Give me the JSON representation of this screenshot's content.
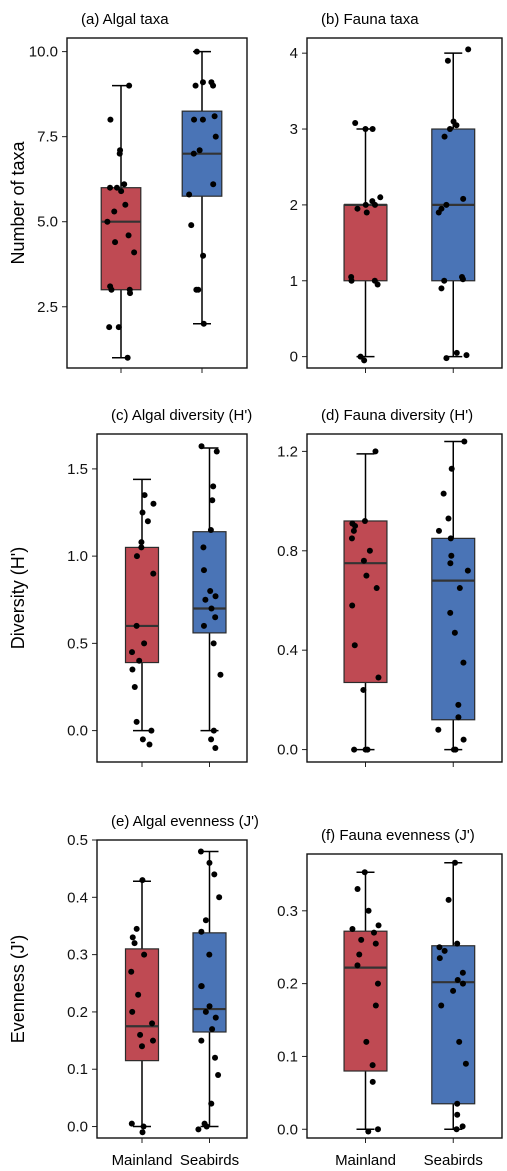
{
  "chart_data": [
    {
      "type": "box",
      "title": "(a) Algal taxa",
      "ylabel": "Number of taxa",
      "yticks": [
        "2.5",
        "5.0",
        "7.5",
        "10.0"
      ],
      "ylim": [
        0.7,
        10.4
      ],
      "categories": [],
      "colors": [
        "#bf4a53",
        "#4a74b6"
      ],
      "boxes": [
        {
          "group": "Mainland",
          "min": 1,
          "q1": 3,
          "median": 5,
          "q3": 6,
          "max": 9,
          "points": [
            1,
            1.9,
            1.9,
            2.9,
            3,
            3,
            3.1,
            4.1,
            4.4,
            4.6,
            5,
            5.3,
            5.5,
            5.9,
            6,
            6,
            6.1,
            7,
            7.1,
            8,
            9
          ]
        },
        {
          "group": "Seabirds",
          "min": 2,
          "q1": 5.75,
          "median": 7,
          "q3": 8.25,
          "max": 10,
          "points": [
            2,
            3,
            3,
            4,
            4.9,
            5.8,
            6.1,
            7,
            7.1,
            7.5,
            8,
            8,
            8.1,
            9,
            9,
            9.1,
            9.1,
            10
          ]
        }
      ]
    },
    {
      "type": "box",
      "title": "(b) Fauna taxa",
      "ylabel": "",
      "yticks": [
        "0",
        "1",
        "2",
        "3",
        "4"
      ],
      "ylim": [
        -0.15,
        4.2
      ],
      "categories": [],
      "colors": [
        "#bf4a53",
        "#4a74b6"
      ],
      "boxes": [
        {
          "group": "Mainland",
          "min": 0,
          "q1": 1,
          "median": 2,
          "q3": 2,
          "max": 3,
          "points": [
            -0.05,
            0,
            0.95,
            1,
            1,
            1.05,
            1.9,
            1.95,
            2,
            2,
            2.05,
            2.1,
            3,
            3,
            3.08
          ]
        },
        {
          "group": "Seabirds",
          "min": 0,
          "q1": 1,
          "median": 2,
          "q3": 3,
          "max": 4,
          "points": [
            -0.02,
            0.02,
            0.05,
            0.9,
            1,
            1.02,
            1.05,
            1.9,
            1.95,
            2,
            2.08,
            2.9,
            3,
            3.05,
            3.1,
            3.9,
            4.05
          ]
        }
      ]
    },
    {
      "type": "box",
      "title": "(c) Algal diversity (H')",
      "ylabel": "Diversity (H')",
      "yticks": [
        "0.0",
        "0.5",
        "1.0",
        "1.5"
      ],
      "ylim": [
        -0.18,
        1.7
      ],
      "categories": [],
      "colors": [
        "#bf4a53",
        "#4a74b6"
      ],
      "boxes": [
        {
          "group": "Mainland",
          "min": 0,
          "q1": 0.39,
          "median": 0.6,
          "q3": 1.05,
          "max": 1.44,
          "points": [
            -0.08,
            -0.05,
            0,
            0.05,
            0.25,
            0.35,
            0.4,
            0.45,
            0.5,
            0.6,
            0.9,
            1.0,
            1.05,
            1.08,
            1.2,
            1.25,
            1.3,
            1.35
          ]
        },
        {
          "group": "Seabirds",
          "min": 0,
          "q1": 0.56,
          "median": 0.7,
          "q3": 1.14,
          "max": 1.62,
          "points": [
            -0.1,
            -0.05,
            0,
            0.32,
            0.5,
            0.6,
            0.65,
            0.7,
            0.75,
            0.77,
            0.8,
            0.92,
            1.05,
            1.15,
            1.32,
            1.4,
            1.6,
            1.63
          ]
        }
      ]
    },
    {
      "type": "box",
      "title": "(d) Fauna diversity (H')",
      "ylabel": "",
      "yticks": [
        "0.0",
        "0.4",
        "0.8",
        "1.2"
      ],
      "ylim": [
        -0.05,
        1.27
      ],
      "categories": [],
      "colors": [
        "#bf4a53",
        "#4a74b6"
      ],
      "boxes": [
        {
          "group": "Mainland",
          "min": 0,
          "q1": 0.27,
          "median": 0.75,
          "q3": 0.92,
          "max": 1.19,
          "points": [
            0,
            0,
            0,
            0.24,
            0.29,
            0.42,
            0.58,
            0.65,
            0.7,
            0.76,
            0.8,
            0.85,
            0.88,
            0.9,
            0.91,
            0.92,
            1.2
          ]
        },
        {
          "group": "Seabirds",
          "min": 0,
          "q1": 0.12,
          "median": 0.68,
          "q3": 0.85,
          "max": 1.24,
          "points": [
            0,
            0,
            0.04,
            0.08,
            0.13,
            0.18,
            0.35,
            0.47,
            0.55,
            0.65,
            0.72,
            0.75,
            0.78,
            0.85,
            0.88,
            0.93,
            1.03,
            1.13,
            1.24
          ]
        }
      ]
    },
    {
      "type": "box",
      "title": "(e) Algal evenness (J')",
      "ylabel": "Evenness (J')",
      "yticks": [
        "0.0",
        "0.1",
        "0.2",
        "0.3",
        "0.4",
        "0.5"
      ],
      "ylim": [
        -0.02,
        0.5
      ],
      "categories": [
        "Mainland",
        "Seabirds"
      ],
      "colors": [
        "#bf4a53",
        "#4a74b6"
      ],
      "boxes": [
        {
          "group": "Mainland",
          "min": 0,
          "q1": 0.115,
          "median": 0.175,
          "q3": 0.31,
          "max": 0.428,
          "points": [
            -0.01,
            0,
            0.005,
            0.14,
            0.15,
            0.16,
            0.18,
            0.2,
            0.23,
            0.27,
            0.3,
            0.32,
            0.33,
            0.345,
            0.43
          ]
        },
        {
          "group": "Seabirds",
          "min": 0,
          "q1": 0.165,
          "median": 0.205,
          "q3": 0.338,
          "max": 0.48,
          "points": [
            -0.005,
            0,
            0.005,
            0.04,
            0.09,
            0.12,
            0.15,
            0.17,
            0.19,
            0.2,
            0.21,
            0.245,
            0.245,
            0.3,
            0.34,
            0.36,
            0.4,
            0.44,
            0.46,
            0.48
          ]
        }
      ]
    },
    {
      "type": "box",
      "title": "(f) Fauna evenness (J')",
      "ylabel": "",
      "yticks": [
        "0.0",
        "0.1",
        "0.2",
        "0.3"
      ],
      "ylim": [
        -0.012,
        0.378
      ],
      "categories": [
        "Mainland",
        "Seabirds"
      ],
      "colors": [
        "#bf4a53",
        "#4a74b6"
      ],
      "boxes": [
        {
          "group": "Mainland",
          "min": 0,
          "q1": 0.08,
          "median": 0.222,
          "q3": 0.272,
          "max": 0.353,
          "points": [
            -0.003,
            0,
            0.065,
            0.088,
            0.12,
            0.17,
            0.2,
            0.225,
            0.24,
            0.255,
            0.26,
            0.27,
            0.275,
            0.28,
            0.3,
            0.33,
            0.353
          ]
        },
        {
          "group": "Seabirds",
          "min": 0,
          "q1": 0.035,
          "median": 0.202,
          "q3": 0.252,
          "max": 0.366,
          "points": [
            0,
            0.004,
            0.02,
            0.035,
            0.09,
            0.12,
            0.17,
            0.19,
            0.2,
            0.205,
            0.215,
            0.235,
            0.245,
            0.25,
            0.255,
            0.315,
            0.366
          ]
        }
      ]
    }
  ]
}
